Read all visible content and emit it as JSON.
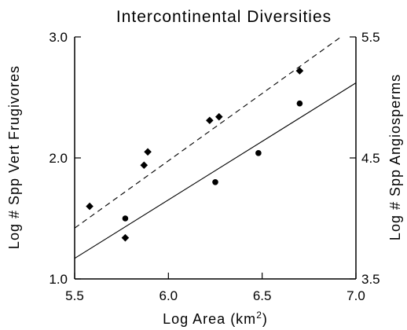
{
  "chart_data": {
    "type": "scatter",
    "title": "Intercontinental Diversities",
    "xlabel": "Log Area (km²)",
    "xlabel_parts": {
      "main": "Log Area (km",
      "superscript": "2",
      "close": ")"
    },
    "ylabel": "Log # Spp Vert Frugivores",
    "ylabel_right": "Log # Spp Angiosperms",
    "xlim": [
      5.5,
      7.0
    ],
    "ylim": [
      1.0,
      3.0
    ],
    "ylim_right": [
      3.5,
      5.5
    ],
    "xticks": [
      5.5,
      6.0,
      6.5,
      7.0
    ],
    "xtick_labels": [
      "5.5",
      "6.0",
      "6.5",
      "7.0"
    ],
    "yticks": [
      1.0,
      2.0,
      3.0
    ],
    "ytick_labels": [
      "1.0",
      "2.0",
      "3.0"
    ],
    "yticks_right": [
      3.5,
      4.5,
      5.5
    ],
    "ytick_labels_right": [
      "3.5",
      "4.5",
      "5.5"
    ],
    "grid": false,
    "series": [
      {
        "marker": "diamond",
        "axis": "left",
        "x": [
          5.58,
          5.77,
          5.87,
          5.89,
          6.22,
          6.27,
          6.7
        ],
        "y": [
          1.6,
          1.34,
          1.94,
          2.05,
          2.31,
          2.34,
          2.72
        ]
      },
      {
        "marker": "circle",
        "axis": "left",
        "x": [
          5.77,
          6.25,
          6.48,
          6.7
        ],
        "y": [
          1.5,
          1.8,
          2.04,
          2.45
        ]
      }
    ],
    "fit_lines": [
      {
        "style": "dashed",
        "x": [
          5.5,
          6.92
        ],
        "y": [
          1.42,
          3.0
        ]
      },
      {
        "style": "solid",
        "x": [
          5.5,
          7.0
        ],
        "y": [
          1.17,
          2.62
        ]
      }
    ]
  }
}
